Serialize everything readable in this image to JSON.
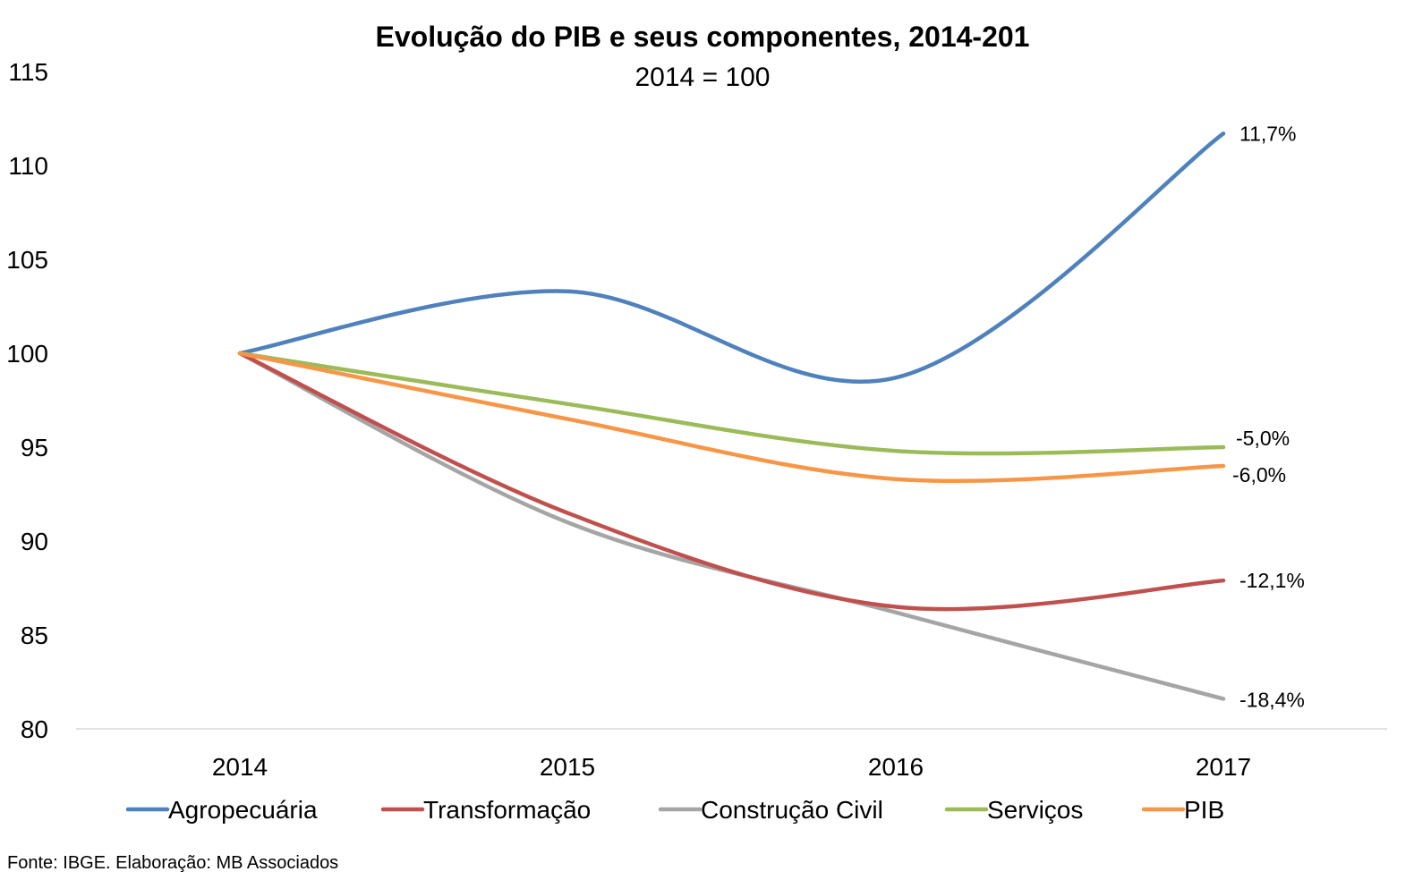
{
  "chart_data": {
    "type": "line",
    "title": "Evolução do PIB e seus componentes, 2014-201",
    "subtitle": "2014 = 100",
    "categories": [
      "2014",
      "2015",
      "2016",
      "2017"
    ],
    "ylim": [
      80,
      115
    ],
    "yticks": [
      "80",
      "85",
      "90",
      "95",
      "100",
      "105",
      "110",
      "115"
    ],
    "grid": false,
    "legend_position": "bottom",
    "series": [
      {
        "name": "Agropecuária",
        "color": "#4F81BD",
        "values": [
          100,
          103.3,
          98.7,
          111.7
        ],
        "end_label": "11,7%"
      },
      {
        "name": "Transformação",
        "color": "#C0504D",
        "values": [
          100,
          91.5,
          86.5,
          87.9
        ],
        "end_label": "-12,1%"
      },
      {
        "name": "Construção Civil",
        "color": "#A5A5A5",
        "values": [
          100,
          91.0,
          86.2,
          81.6
        ],
        "end_label": "-18,4%"
      },
      {
        "name": "Serviços",
        "color": "#9BBB59",
        "values": [
          100,
          97.3,
          94.8,
          95.0
        ],
        "end_label": "-5,0%"
      },
      {
        "name": "PIB",
        "color": "#F79646",
        "values": [
          100,
          96.5,
          93.3,
          94.0
        ],
        "end_label": "-6,0%"
      }
    ]
  },
  "source": "Fonte: IBGE. Elaboração: MB Associados"
}
